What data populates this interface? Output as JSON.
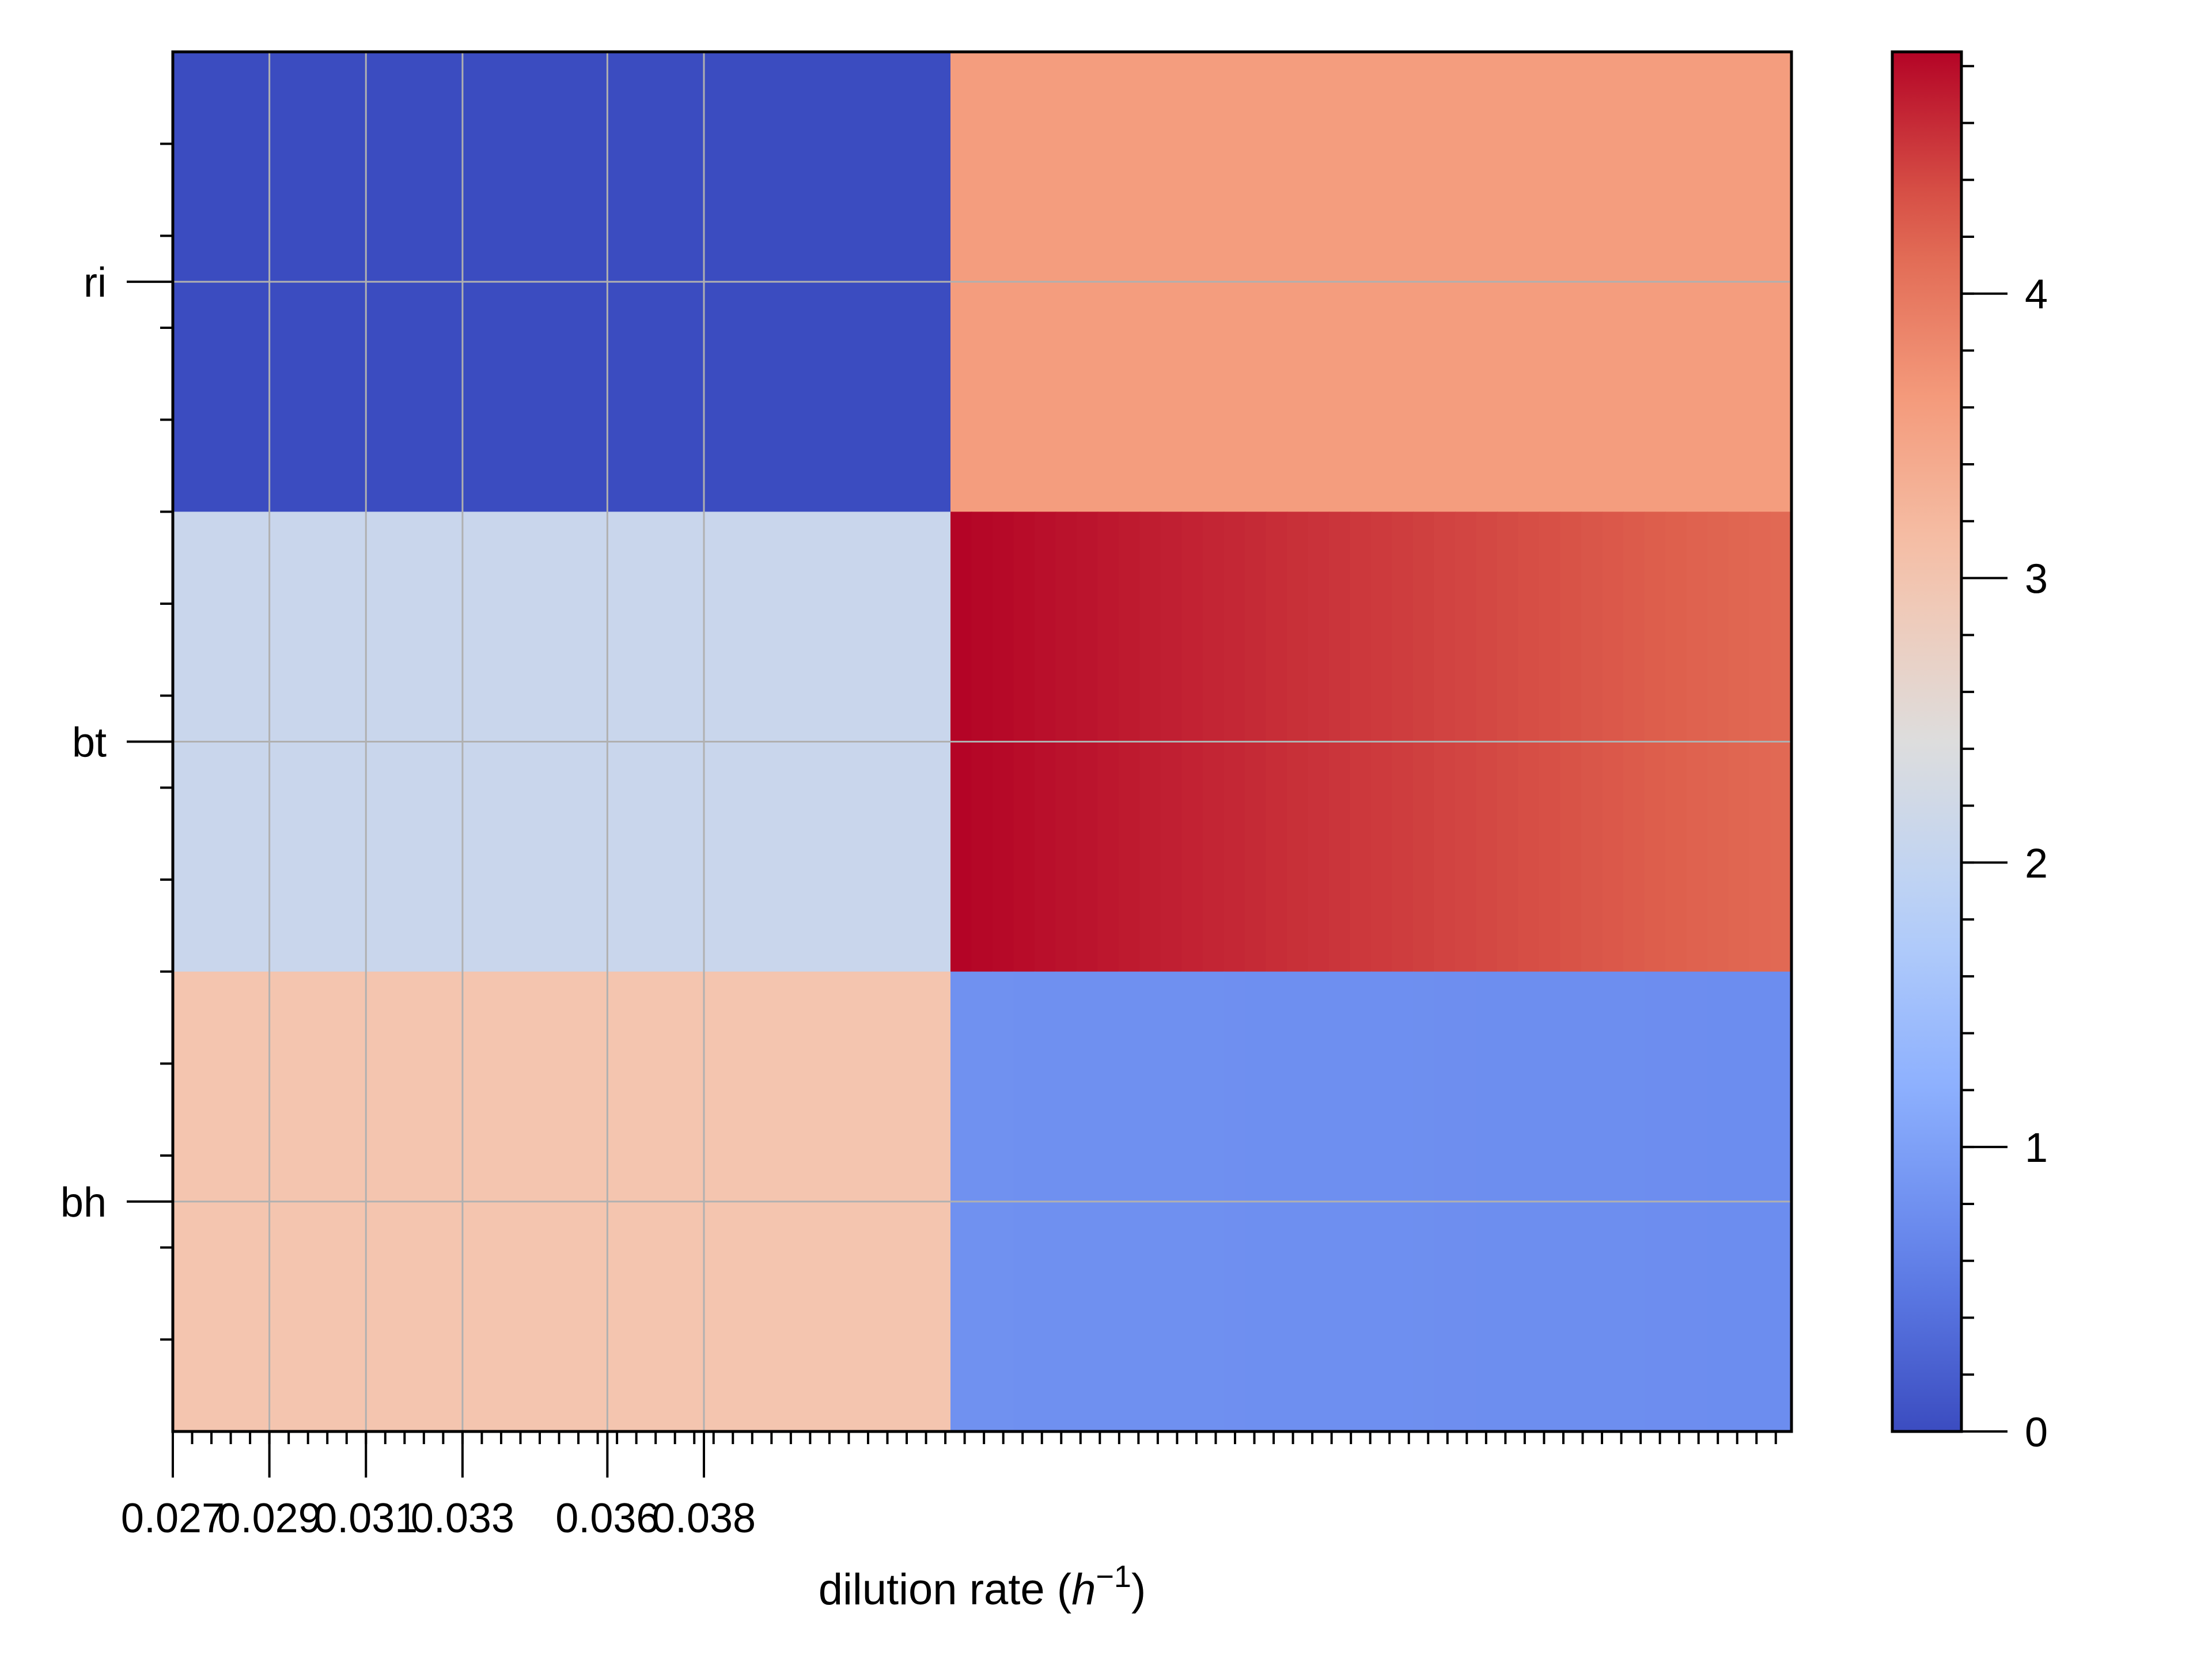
{
  "chart_data": {
    "type": "heatmap",
    "xlabel": "dilution rate ($h^{-1}$)",
    "xlabel_text": "dilution rate (",
    "xlabel_symbol": "h",
    "xlabel_exp": "−1",
    "xlabel_close": ")",
    "x_tick_labels": [
      "0.027",
      "0.029",
      "0.031",
      "0.033",
      "0.036",
      "0.038"
    ],
    "x_tick_values": [
      0.027,
      0.029,
      0.031,
      0.033,
      0.036,
      0.038
    ],
    "x_range": [
      0.027,
      0.057
    ],
    "rows": [
      "ri",
      "bt",
      "bh"
    ],
    "row_band_value": [
      0,
      2.1,
      3.0
    ],
    "right_band_values": {
      "ri": [
        3.6,
        3.6
      ],
      "bt": [
        4.85,
        4.15
      ],
      "bh": [
        0.8,
        0.75
      ]
    },
    "colorbar": {
      "min": 0,
      "max": 4.85,
      "ticks": [
        0,
        1,
        2,
        3,
        4
      ],
      "tick_labels": [
        "0",
        "1",
        "2",
        "3",
        "4"
      ],
      "colormap": "coolwarm"
    },
    "grid": true,
    "colors": {
      "low": "#3b4cc0",
      "mid": "#dddddd",
      "high": "#b40426",
      "grid": "#b0b0b0"
    }
  }
}
